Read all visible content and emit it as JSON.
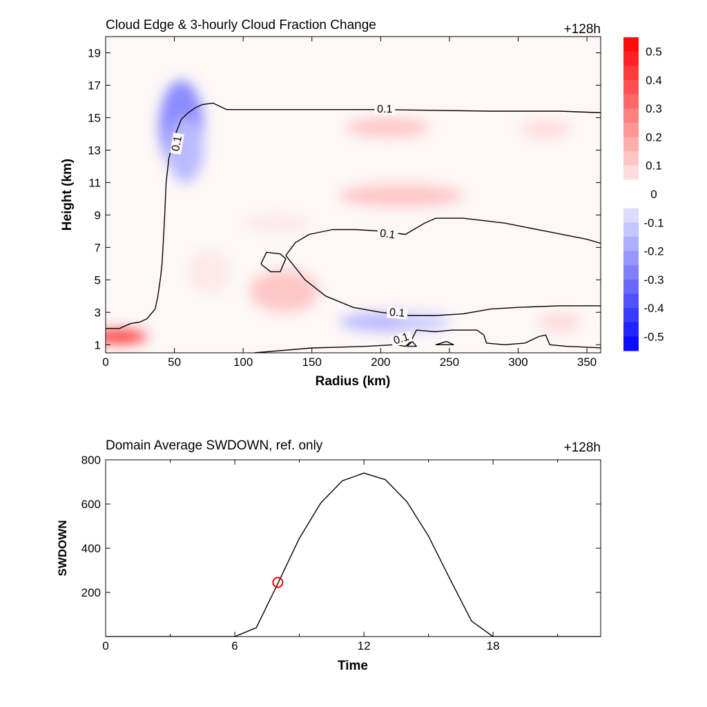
{
  "chart_data": [
    {
      "type": "heatmap",
      "title": "Cloud Edge & 3-hourly Cloud Fraction Change",
      "time_label": "+128h",
      "xlabel": "Radius (km)",
      "ylabel": "Height (km)",
      "xlim": [
        0,
        360
      ],
      "ylim": [
        0.5,
        20
      ],
      "xticks": [
        0,
        50,
        100,
        150,
        200,
        250,
        300,
        350
      ],
      "yticks": [
        1,
        3,
        5,
        7,
        9,
        11,
        13,
        15,
        17,
        19
      ],
      "colorbar": {
        "ticks": [
          "0.5",
          "0.4",
          "0.3",
          "0.2",
          "0.1",
          "0",
          "-0.1",
          "-0.2",
          "-0.3",
          "-0.4",
          "-0.5"
        ],
        "range": [
          -0.55,
          0.55
        ],
        "positive_color": "#ff0000",
        "negative_color": "#0000ff"
      },
      "contour_level": 0.1,
      "contour_labels": [
        "0.1",
        "0.1",
        "0.1",
        "0.1",
        "0.1"
      ],
      "contours": [
        [
          [
            0,
            2.0
          ],
          [
            10,
            2.0
          ],
          [
            18,
            2.3
          ],
          [
            25,
            2.4
          ],
          [
            30,
            2.6
          ],
          [
            36,
            3.2
          ],
          [
            38,
            4.0
          ],
          [
            40,
            5.2
          ],
          [
            41,
            6.0
          ],
          [
            42,
            7.5
          ],
          [
            43,
            9.0
          ],
          [
            44,
            11.0
          ],
          [
            46,
            12.5
          ],
          [
            50,
            13.8
          ],
          [
            55,
            14.9
          ],
          [
            60,
            15.3
          ],
          [
            65,
            15.6
          ],
          [
            70,
            15.8
          ],
          [
            78,
            15.9
          ],
          [
            88,
            15.5
          ],
          [
            120,
            15.5
          ],
          [
            200,
            15.5
          ],
          [
            280,
            15.4
          ],
          [
            330,
            15.4
          ],
          [
            362,
            15.3
          ]
        ],
        [
          [
            131,
            6.5
          ],
          [
            138,
            7.3
          ],
          [
            148,
            7.8
          ],
          [
            165,
            8.1
          ],
          [
            182,
            8.1
          ],
          [
            200,
            8.0
          ],
          [
            218,
            7.8
          ],
          [
            232,
            8.5
          ],
          [
            240,
            8.8
          ],
          [
            260,
            8.8
          ],
          [
            290,
            8.5
          ],
          [
            320,
            8.0
          ],
          [
            350,
            7.5
          ],
          [
            362,
            7.2
          ]
        ],
        [
          [
            131,
            6.5
          ],
          [
            145,
            5.0
          ],
          [
            160,
            4.0
          ],
          [
            180,
            3.3
          ],
          [
            200,
            3.0
          ],
          [
            220,
            2.8
          ],
          [
            240,
            2.8
          ],
          [
            260,
            2.9
          ],
          [
            280,
            3.2
          ],
          [
            300,
            3.3
          ],
          [
            330,
            3.4
          ],
          [
            362,
            3.4
          ]
        ],
        [
          [
            113,
            6.0
          ],
          [
            117,
            6.7
          ],
          [
            127,
            6.6
          ],
          [
            131,
            6.3
          ],
          [
            127,
            5.5
          ],
          [
            120,
            5.5
          ],
          [
            114,
            5.9
          ],
          [
            113,
            6.0
          ]
        ],
        [
          [
            108,
            0.5
          ],
          [
            150,
            0.8
          ],
          [
            190,
            0.9
          ],
          [
            210,
            1.0
          ],
          [
            218,
            0.9
          ],
          [
            222,
            1.2
          ],
          [
            226,
            1.9
          ],
          [
            240,
            1.8
          ],
          [
            252,
            1.9
          ],
          [
            270,
            1.9
          ],
          [
            275,
            1.6
          ],
          [
            277,
            1.1
          ],
          [
            290,
            1.0
          ],
          [
            305,
            1.1
          ],
          [
            315,
            1.5
          ],
          [
            320,
            1.6
          ],
          [
            323,
            1.0
          ],
          [
            335,
            0.9
          ],
          [
            362,
            0.8
          ]
        ],
        [
          [
            219,
            0.9
          ],
          [
            223,
            1.2
          ],
          [
            226,
            0.9
          ],
          [
            219,
            0.9
          ]
        ],
        [
          [
            240,
            1.0
          ],
          [
            248,
            1.2
          ],
          [
            253,
            1.0
          ],
          [
            240,
            1.0
          ]
        ]
      ],
      "anomalies": [
        {
          "r": 10,
          "z": 1.5,
          "rx": 20,
          "rz": 0.4,
          "value": 0.45
        },
        {
          "r": 55,
          "z": 14.5,
          "rx": 16,
          "rz": 2.8,
          "value": -0.25
        },
        {
          "r": 58,
          "z": 13.0,
          "rx": 13,
          "rz": 2.0,
          "value": -0.15
        },
        {
          "r": 205,
          "z": 14.4,
          "rx": 30,
          "rz": 0.6,
          "value": 0.12
        },
        {
          "r": 320,
          "z": 14.3,
          "rx": 18,
          "rz": 0.5,
          "value": 0.08
        },
        {
          "r": 215,
          "z": 10.2,
          "rx": 45,
          "rz": 0.7,
          "value": 0.12
        },
        {
          "r": 130,
          "z": 4.3,
          "rx": 25,
          "rz": 1.3,
          "value": 0.12
        },
        {
          "r": 210,
          "z": 2.4,
          "rx": 40,
          "rz": 0.6,
          "value": -0.15
        },
        {
          "r": 230,
          "z": 2.5,
          "rx": 20,
          "rz": 0.4,
          "value": -0.1
        },
        {
          "r": 330,
          "z": 2.4,
          "rx": 15,
          "rz": 0.6,
          "value": 0.08
        },
        {
          "r": 75,
          "z": 5.5,
          "rx": 15,
          "rz": 1.3,
          "value": 0.05
        },
        {
          "r": 125,
          "z": 8.5,
          "rx": 25,
          "rz": 0.5,
          "value": 0.05
        }
      ]
    },
    {
      "type": "line",
      "title": "Domain Average SWDOWN, ref. only",
      "time_label": "+128h",
      "xlabel": "Time",
      "ylabel": "SWDOWN",
      "xlim": [
        0,
        23
      ],
      "ylim": [
        0,
        800
      ],
      "xticks": [
        0,
        6,
        12,
        18
      ],
      "yticks": [
        200,
        400,
        600,
        800
      ],
      "x": [
        0,
        1,
        2,
        3,
        4,
        5,
        6,
        7,
        8,
        9,
        10,
        11,
        12,
        13,
        14,
        15,
        16,
        17,
        18,
        19,
        20,
        21,
        22,
        23
      ],
      "values": [
        0,
        0,
        0,
        0,
        0,
        0,
        0,
        40,
        240,
        445,
        605,
        705,
        740,
        710,
        610,
        455,
        260,
        70,
        0,
        0,
        0,
        0,
        0,
        0
      ],
      "marker": {
        "x": 8,
        "y": 245,
        "color": "#ff0000"
      }
    }
  ]
}
